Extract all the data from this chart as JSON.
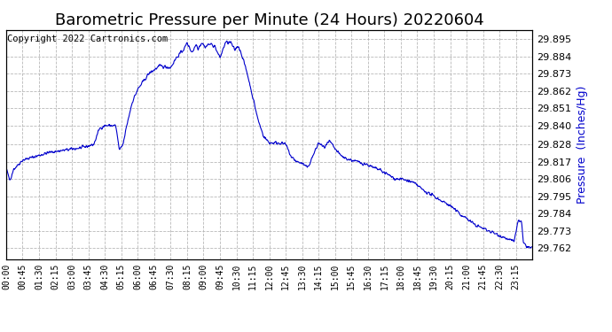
{
  "title": "Barometric Pressure per Minute (24 Hours) 20220604",
  "copyright_text": "Copyright 2022 Cartronics.com",
  "ylabel": "Pressure  (Inches/Hg)",
  "ylabel_color": "#0000cc",
  "line_color": "#0000cc",
  "background_color": "#ffffff",
  "plot_bg_color": "#ffffff",
  "grid_color": "#b0b0b0",
  "yticks": [
    29.762,
    29.773,
    29.784,
    29.795,
    29.806,
    29.817,
    29.828,
    29.84,
    29.851,
    29.862,
    29.873,
    29.884,
    29.895
  ],
  "ylim": [
    29.755,
    29.901
  ],
  "xtick_labels": [
    "00:00",
    "00:45",
    "01:30",
    "02:15",
    "03:00",
    "03:45",
    "04:30",
    "05:15",
    "06:00",
    "06:45",
    "07:30",
    "08:15",
    "09:00",
    "09:45",
    "10:30",
    "11:15",
    "12:00",
    "12:45",
    "13:30",
    "14:15",
    "15:00",
    "15:45",
    "16:30",
    "17:15",
    "18:00",
    "18:45",
    "19:30",
    "20:15",
    "21:00",
    "21:45",
    "22:30",
    "23:15"
  ],
  "title_fontsize": 13,
  "copyright_fontsize": 7.5,
  "ylabel_fontsize": 9,
  "tick_fontsize": 7,
  "ytick_fontsize": 8
}
